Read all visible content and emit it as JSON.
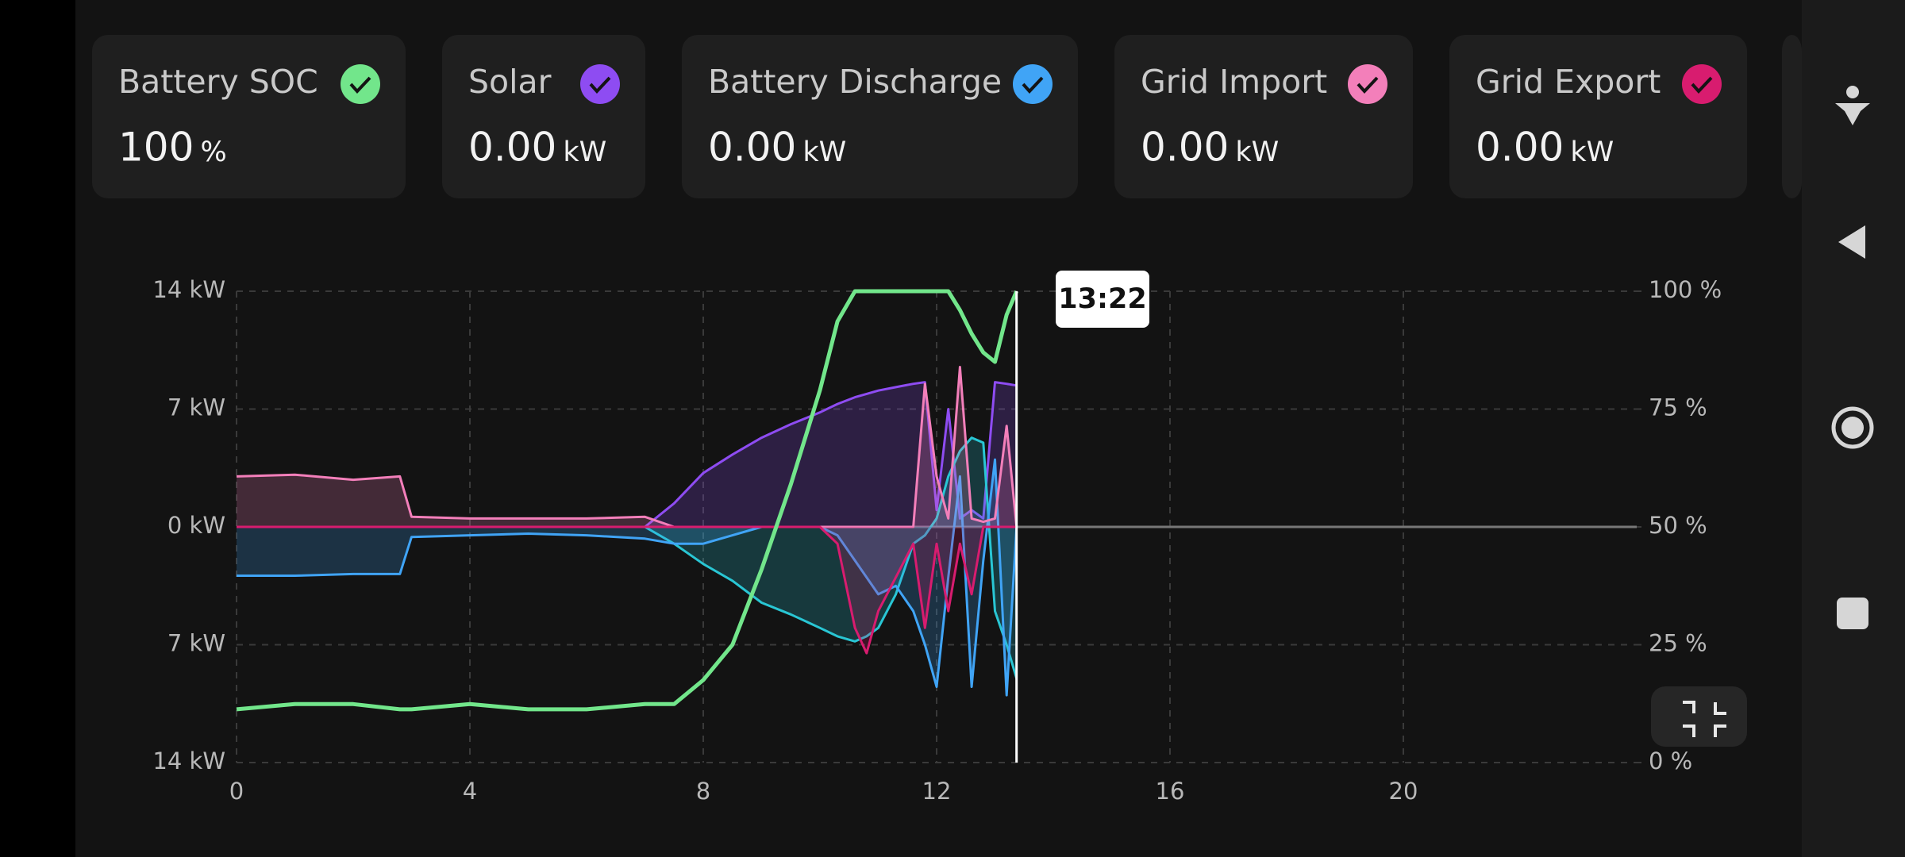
{
  "cards": [
    {
      "value": "100",
      "unit": "%"
    },
    {
      "value": "0.00",
      "unit": "kW"
    },
    {
      "value": "0.00",
      "unit": "kW"
    },
    {
      "value": "0.00",
      "unit": "kW"
    },
    {
      "value": "0.00",
      "unit": "kW"
    }
  ],
  "tooltip": "13:22",
  "chart_data": {
    "type": "line",
    "x": [
      0,
      1,
      2,
      2.8,
      3,
      4,
      5,
      6,
      7,
      7.5,
      8,
      8.5,
      9,
      9.5,
      10,
      10.3,
      10.6,
      10.8,
      11,
      11.3,
      11.6,
      11.8,
      12,
      12.2,
      12.4,
      12.6,
      12.8,
      13,
      13.2,
      13.37
    ],
    "series": [
      {
        "name": "Battery SOC",
        "color": "#72e68b",
        "axis": "y2",
        "values": [
          11.3,
          12.4,
          12.4,
          11.3,
          11.3,
          12.4,
          11.3,
          11.3,
          12.4,
          12.4,
          17.5,
          25,
          41,
          59,
          79,
          93.6,
          100,
          100,
          100,
          100,
          100,
          100,
          100,
          100,
          96,
          91,
          87,
          85,
          95,
          100
        ]
      },
      {
        "name": "Solar",
        "color": "#8e4cf2",
        "values": [
          0,
          0,
          0,
          0,
          0,
          0,
          0,
          0,
          0,
          1.4,
          3.2,
          4.3,
          5.3,
          6.1,
          6.8,
          7.3,
          7.7,
          7.9,
          8.1,
          8.3,
          8.5,
          8.6,
          1,
          7,
          0.5,
          1,
          0.5,
          8.6,
          8.5,
          8.4
        ]
      },
      {
        "name": "Battery Discharge",
        "color": "#40a4f6",
        "values": [
          -2.9,
          -2.9,
          -2.8,
          -2.8,
          -0.6,
          -0.5,
          -0.4,
          -0.5,
          -0.7,
          -1,
          -1,
          -0.5,
          0,
          0,
          0,
          -0.5,
          -2,
          -3,
          -4,
          -3.5,
          -5,
          -7,
          -9.5,
          -3,
          3,
          -9.5,
          -2,
          4,
          -10,
          0
        ]
      },
      {
        "name": "Grid Import",
        "color": "#f37fba",
        "values": [
          3,
          3.1,
          2.8,
          3,
          0.6,
          0.5,
          0.5,
          0.5,
          0.6,
          0,
          0,
          0,
          0,
          0,
          0,
          0,
          0,
          0,
          0,
          0,
          0,
          8.5,
          3,
          0.5,
          9.5,
          0.5,
          0.3,
          0.5,
          6,
          0
        ]
      },
      {
        "name": "Grid Export",
        "color": "#d81c6f",
        "values": [
          0,
          0,
          0,
          0,
          0,
          0,
          0,
          0,
          0,
          0,
          0,
          0,
          0,
          0,
          0,
          -1,
          -6,
          -7.5,
          -5,
          -3,
          -1,
          -6,
          -1,
          -5,
          -1,
          -4,
          0,
          0,
          0,
          0
        ]
      },
      {
        "color": "#29c6d4",
        "values": [
          0,
          0,
          0,
          0,
          0,
          0,
          0,
          0,
          0,
          -1,
          -2.2,
          -3.2,
          -4.5,
          -5.2,
          -6,
          -6.5,
          -6.8,
          -6.5,
          -6,
          -4,
          -1,
          -0.5,
          0.5,
          3,
          4.5,
          5.3,
          5,
          -5,
          -7,
          -9
        ]
      }
    ],
    "xlim": [
      0,
      24
    ],
    "xticks": [
      0,
      4,
      8,
      12,
      16,
      20
    ],
    "ylim": [
      -14,
      14
    ],
    "yticks": [
      {
        "value": 14,
        "label": "14 kW"
      },
      {
        "value": 7,
        "label": "7 kW"
      },
      {
        "value": 0,
        "label": "0 kW"
      },
      {
        "value": -7,
        "label": "7 kW"
      },
      {
        "value": -14,
        "label": "14 kW"
      }
    ],
    "y2lim": [
      0,
      100
    ],
    "y2ticks": [
      {
        "value": 100,
        "label": "100 %"
      },
      {
        "value": 75,
        "label": "75 %"
      },
      {
        "value": 50,
        "label": "50 %"
      },
      {
        "value": 25,
        "label": "25 %"
      },
      {
        "value": 0,
        "label": "0 %"
      }
    ],
    "grid": true
  }
}
